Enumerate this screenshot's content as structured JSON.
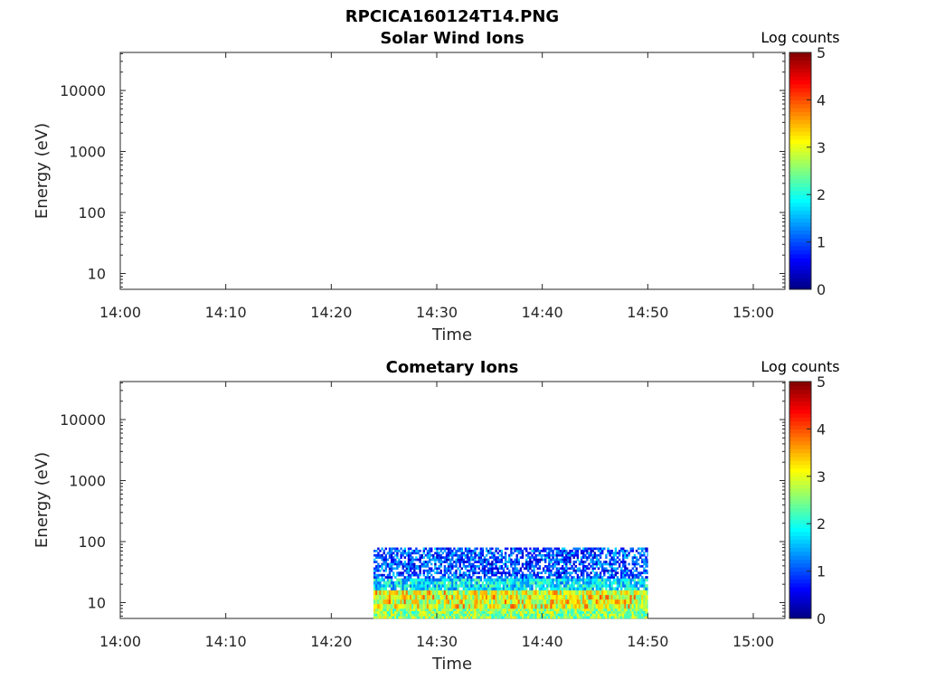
{
  "chart_data": [
    {
      "type": "heatmap",
      "figure_title": "RPCICA160124T14.PNG",
      "title": "Solar Wind Ions",
      "xlabel": "Time",
      "ylabel": "Energy (eV)",
      "x_ticks": [
        "14:00",
        "14:10",
        "14:20",
        "14:30",
        "14:40",
        "14:50",
        "15:00"
      ],
      "xlim_minutes": [
        0,
        63
      ],
      "y_scale": "log",
      "y_ticks": [
        "10",
        "100",
        "1000",
        "10000"
      ],
      "ylim": [
        5.5,
        42000
      ],
      "colorbar": {
        "label": "Log counts",
        "ticks": [
          "0",
          "1",
          "2",
          "3",
          "4",
          "5"
        ],
        "range": [
          0,
          5
        ],
        "colormap": "jet"
      },
      "data": []
    },
    {
      "type": "heatmap",
      "title": "Cometary Ions",
      "xlabel": "Time",
      "ylabel": "Energy (eV)",
      "x_ticks": [
        "14:00",
        "14:10",
        "14:20",
        "14:30",
        "14:40",
        "14:50",
        "15:00"
      ],
      "xlim_minutes": [
        0,
        63
      ],
      "y_scale": "log",
      "y_ticks": [
        "10",
        "100",
        "1000",
        "10000"
      ],
      "ylim": [
        5.5,
        42000
      ],
      "colorbar": {
        "label": "Log counts",
        "ticks": [
          "0",
          "1",
          "2",
          "3",
          "4",
          "5"
        ],
        "range": [
          0,
          5
        ],
        "colormap": "jet"
      },
      "data_extent": {
        "time_start": "14:24",
        "time_end": "14:50",
        "energy_min_eV": 5.5,
        "energy_max_eV": 80
      },
      "energy_bands": [
        {
          "energy_range_eV": [
            5.5,
            8
          ],
          "log_counts_typical": 2.6
        },
        {
          "energy_range_eV": [
            8,
            16
          ],
          "log_counts_typical": 2.9,
          "peak_log_counts": 4.0
        },
        {
          "energy_range_eV": [
            16,
            25
          ],
          "log_counts_typical": 1.8
        },
        {
          "energy_range_eV": [
            25,
            80
          ],
          "log_counts_typical": 1.0
        }
      ]
    }
  ]
}
